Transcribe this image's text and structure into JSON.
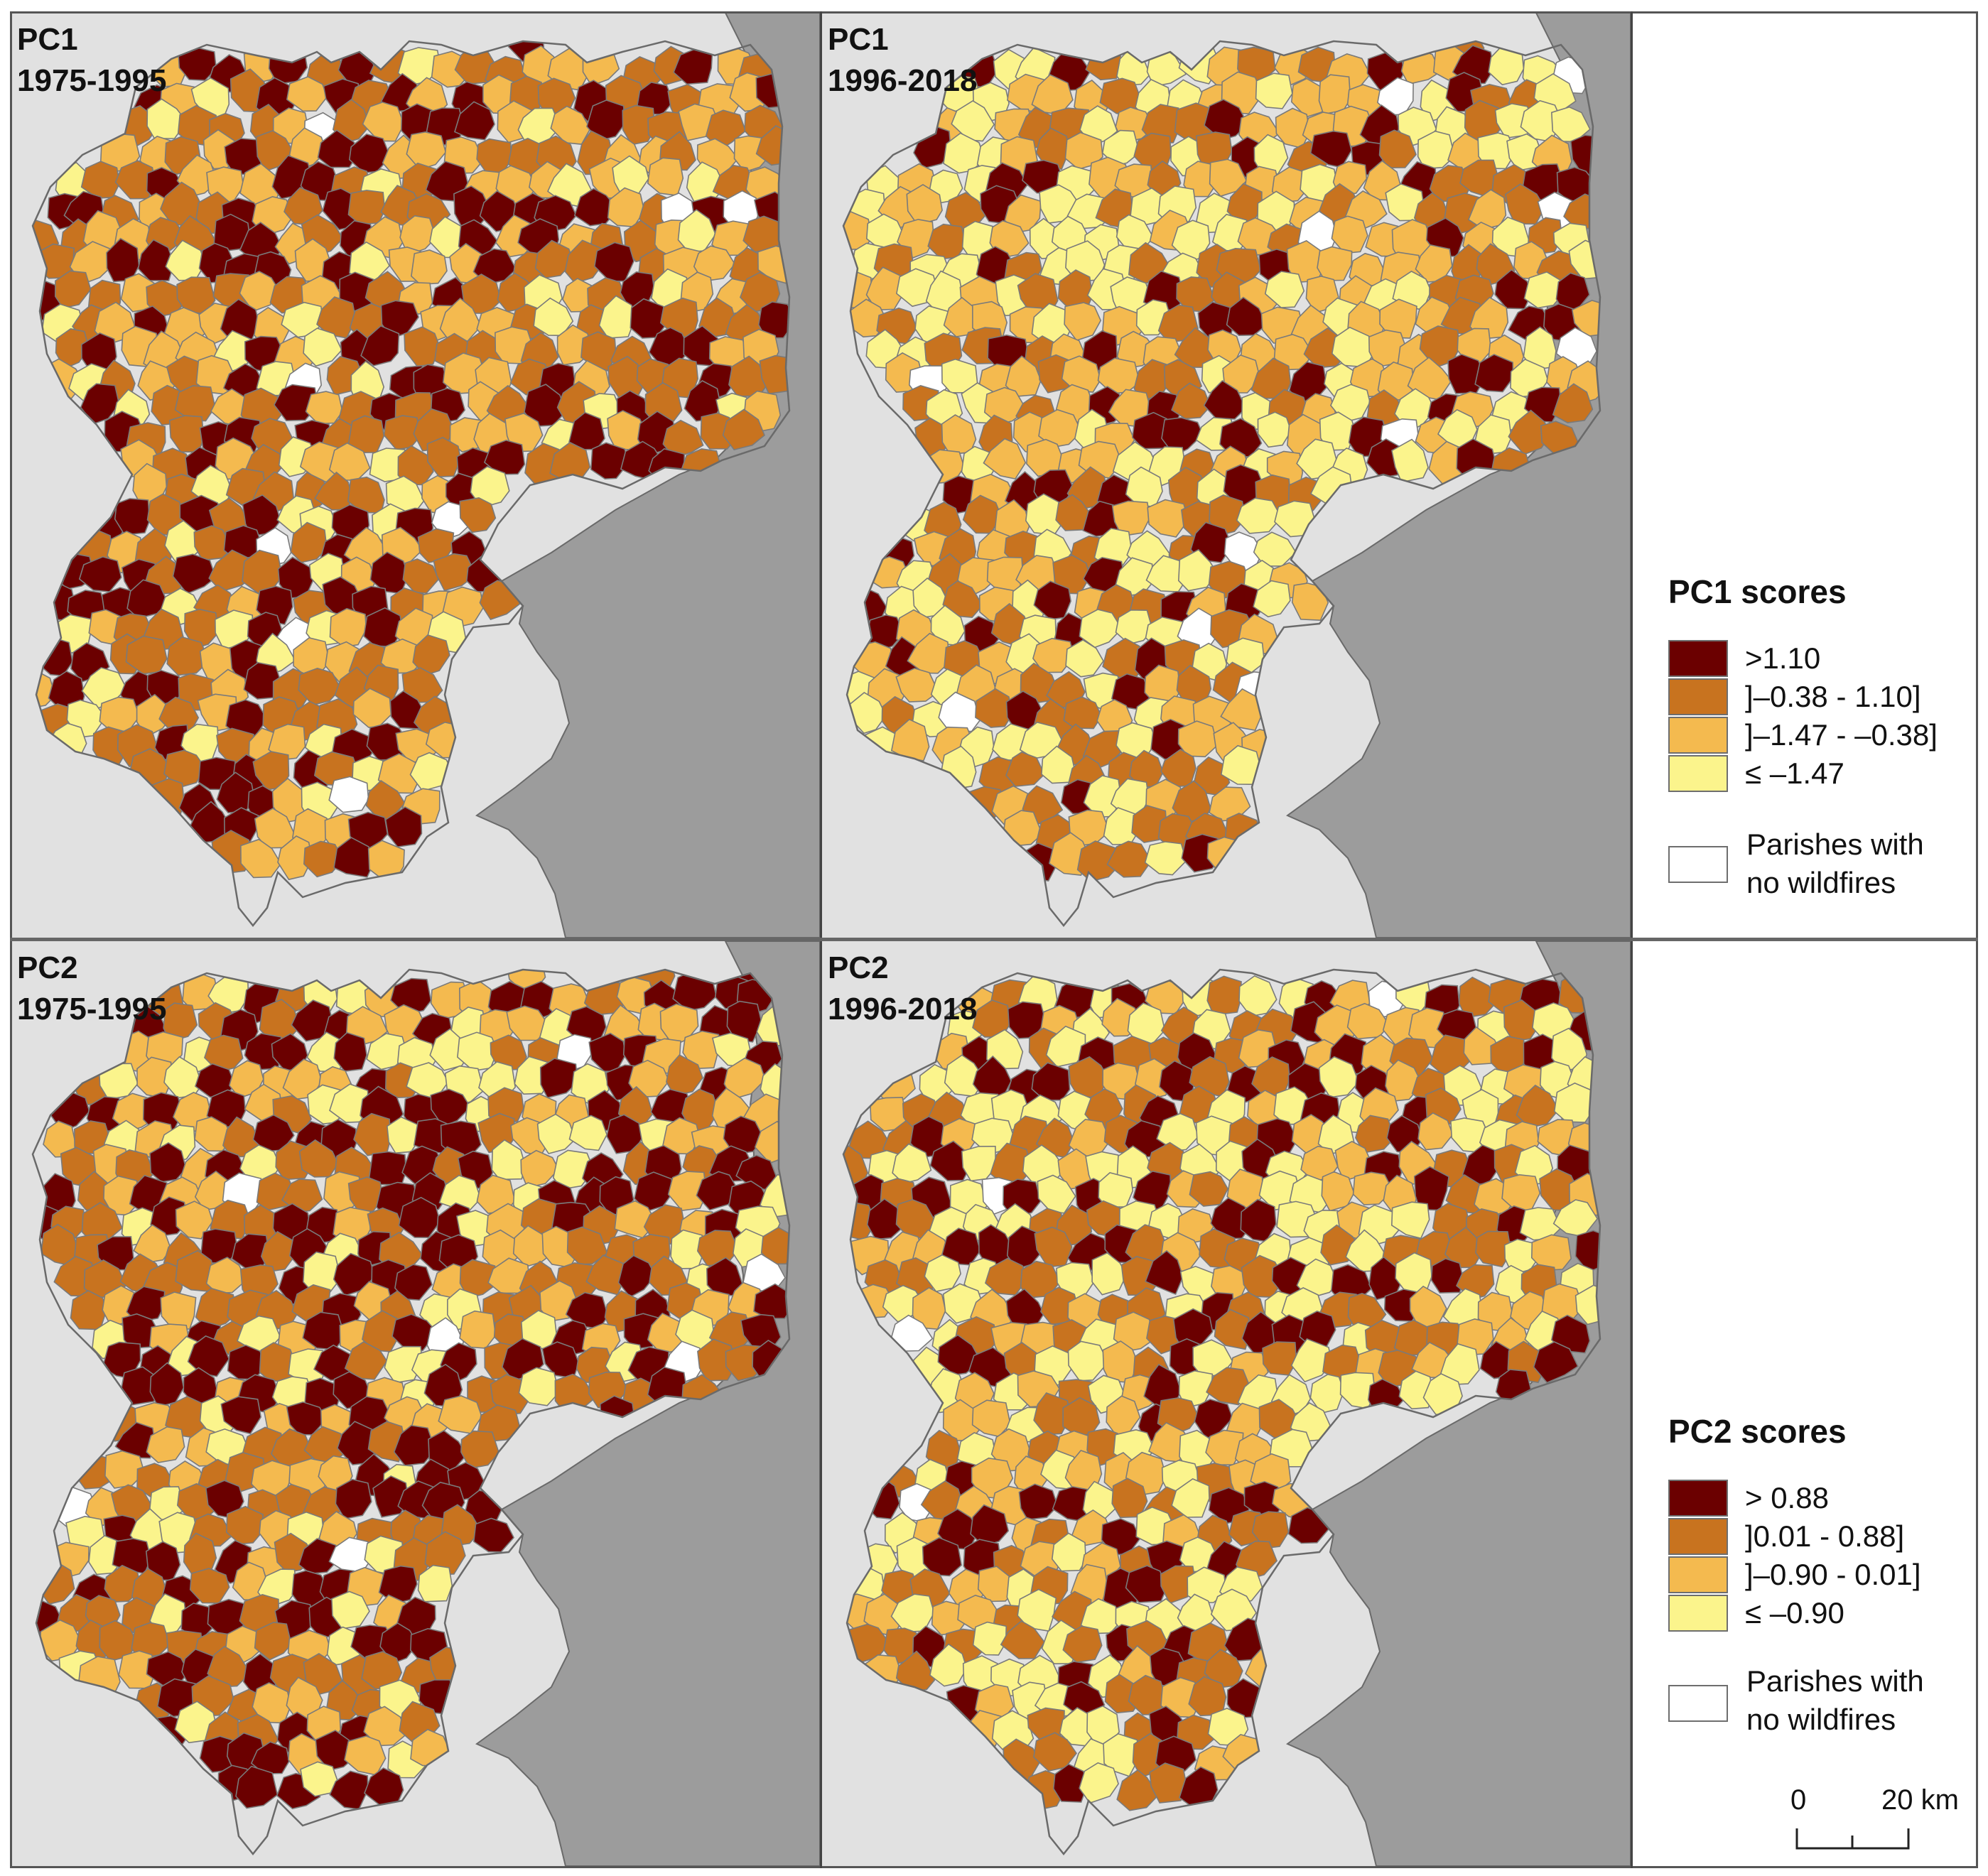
{
  "panels": [
    {
      "id": "pc1-early",
      "line1": "PC1",
      "line2": "1975-1995",
      "seed": 11,
      "bias": [
        0.28,
        0.33,
        0.26,
        0.13
      ]
    },
    {
      "id": "pc1-late",
      "line1": "PC1",
      "line2": "1996-2018",
      "seed": 23,
      "bias": [
        0.15,
        0.26,
        0.31,
        0.28
      ]
    },
    {
      "id": "pc2-early",
      "line1": "PC2",
      "line2": "1975-1995",
      "seed": 37,
      "bias": [
        0.33,
        0.3,
        0.22,
        0.15
      ]
    },
    {
      "id": "pc2-late",
      "line1": "PC2",
      "line2": "1996-2018",
      "seed": 51,
      "bias": [
        0.22,
        0.22,
        0.24,
        0.32
      ]
    }
  ],
  "legend_pc1": {
    "title": "PC1 scores",
    "classes": [
      {
        "label": ">1.10",
        "color": "#6b0000"
      },
      {
        "label": "]–0.38 - 1.10]",
        "color": "#c8731f"
      },
      {
        "label": "]–1.47 - –0.38]",
        "color": "#f4ba4f"
      },
      {
        "label": "≤ –1.47",
        "color": "#fbf48c"
      }
    ],
    "no_wildfire_label_1": "Parishes with",
    "no_wildfire_label_2": "no wildfires"
  },
  "legend_pc2": {
    "title": "PC2 scores",
    "classes": [
      {
        "label": "> 0.88",
        "color": "#6b0000"
      },
      {
        "label": "]0.01 - 0.88]",
        "color": "#c8731f"
      },
      {
        "label": "]–0.90 - 0.01]",
        "color": "#f4ba4f"
      },
      {
        "label": "≤ –0.90",
        "color": "#fbf48c"
      }
    ],
    "no_wildfire_label_1": "Parishes with",
    "no_wildfire_label_2": "no wildfires"
  },
  "scale_bar": {
    "start": "0",
    "end": "20 km"
  },
  "colors": {
    "background_land": "#e1e1e1",
    "neighbour_region": "#9c9c9c",
    "parish_border": "#7a7a7a",
    "no_wildfire": "#ffffff"
  }
}
